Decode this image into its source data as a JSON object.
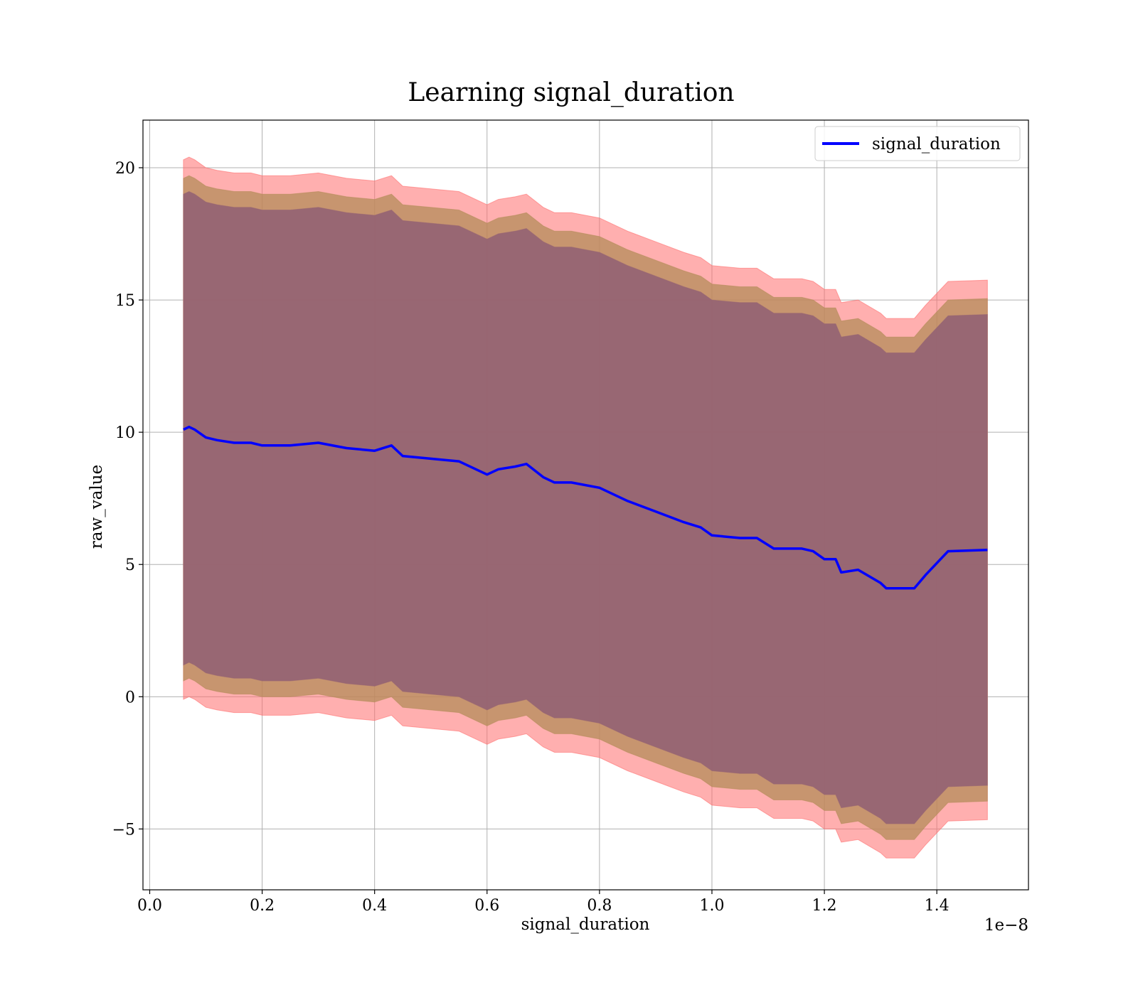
{
  "chart_data": {
    "type": "line",
    "title": "Learning signal_duration",
    "xlabel": "signal_duration",
    "ylabel": "raw_value",
    "x_offset_text": "1e−8",
    "xlim": [
      -0.012,
      1.563
    ],
    "ylim": [
      -7.3,
      21.8
    ],
    "xticks": [
      0.0,
      0.2,
      0.4,
      0.6,
      0.8,
      1.0,
      1.2,
      1.4
    ],
    "xtick_labels": [
      "0.0",
      "0.2",
      "0.4",
      "0.6",
      "0.8",
      "1.0",
      "1.2",
      "1.4"
    ],
    "yticks": [
      -5,
      0,
      5,
      10,
      15,
      20
    ],
    "ytick_labels": [
      "−5",
      "0",
      "5",
      "10",
      "15",
      "20"
    ],
    "grid": true,
    "legend": {
      "position": "upper-right",
      "entries": [
        "signal_duration"
      ]
    },
    "colors": {
      "line": "#0000ff",
      "outer_band": "#ff6e6e",
      "middle_band": "#b48c5a",
      "inner_band": "#966473"
    },
    "series": [
      {
        "name": "signal_duration",
        "x": [
          0.06,
          0.07,
          0.08,
          0.1,
          0.12,
          0.15,
          0.18,
          0.2,
          0.25,
          0.3,
          0.35,
          0.4,
          0.43,
          0.45,
          0.5,
          0.55,
          0.6,
          0.62,
          0.65,
          0.67,
          0.7,
          0.72,
          0.75,
          0.8,
          0.85,
          0.9,
          0.95,
          0.98,
          1.0,
          1.05,
          1.08,
          1.11,
          1.16,
          1.18,
          1.2,
          1.22,
          1.23,
          1.26,
          1.3,
          1.31,
          1.36,
          1.38,
          1.42,
          1.49
        ],
        "y": [
          10.1,
          10.2,
          10.1,
          9.8,
          9.7,
          9.6,
          9.6,
          9.5,
          9.5,
          9.6,
          9.4,
          9.3,
          9.5,
          9.1,
          9.0,
          8.9,
          8.4,
          8.6,
          8.7,
          8.8,
          8.3,
          8.1,
          8.1,
          7.9,
          7.4,
          7.0,
          6.6,
          6.4,
          6.1,
          6.0,
          6.0,
          5.6,
          5.6,
          5.5,
          5.2,
          5.2,
          4.7,
          4.8,
          4.3,
          4.1,
          4.1,
          4.6,
          5.5,
          5.55
        ],
        "bands": {
          "outer_half_width": 10.2,
          "middle_half_width": 9.5,
          "inner_half_width": 8.9
        }
      }
    ]
  }
}
